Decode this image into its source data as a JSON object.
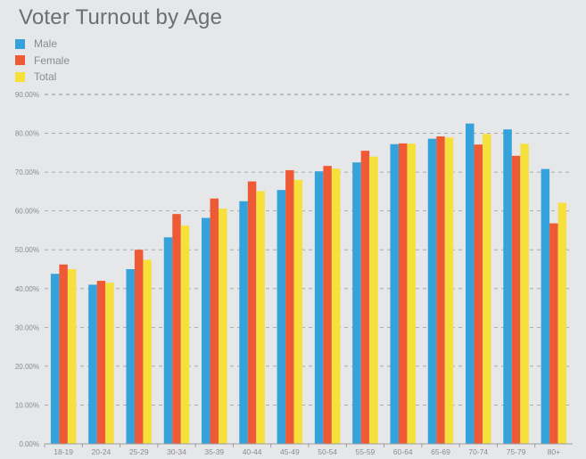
{
  "chart_data": {
    "type": "bar",
    "title": "Voter Turnout by Age",
    "xlabel": "",
    "ylabel": "",
    "ylim": [
      0,
      90
    ],
    "yticks": [
      {
        "value": 0,
        "label": "0.00%"
      },
      {
        "value": 10,
        "label": "10.00%"
      },
      {
        "value": 20,
        "label": "20.00%"
      },
      {
        "value": 30,
        "label": "30.00%"
      },
      {
        "value": 40,
        "label": "40.00%"
      },
      {
        "value": 50,
        "label": "50.00%"
      },
      {
        "value": 60,
        "label": "60.00%"
      },
      {
        "value": 70,
        "label": "70.00%"
      },
      {
        "value": 80,
        "label": "80.00%"
      },
      {
        "value": 90,
        "label": "90.00%"
      }
    ],
    "grid": true,
    "legend_position": "top-left",
    "categories": [
      "18-19",
      "20-24",
      "25-29",
      "30-34",
      "35-39",
      "40-44",
      "45-49",
      "50-54",
      "55-59",
      "60-64",
      "65-69",
      "70-74",
      "75-79",
      "80+"
    ],
    "series": [
      {
        "name": "Male",
        "color": "#36a2dc",
        "values": [
          43.8,
          41.0,
          45.0,
          53.2,
          58.2,
          62.5,
          65.4,
          70.2,
          72.5,
          77.2,
          78.6,
          82.5,
          81.0,
          70.8
        ]
      },
      {
        "name": "Female",
        "color": "#ef5a36",
        "values": [
          46.2,
          42.0,
          50.0,
          59.2,
          63.2,
          67.6,
          70.5,
          71.6,
          75.5,
          77.4,
          79.2,
          77.1,
          74.2,
          56.8
        ]
      },
      {
        "name": "Total",
        "color": "#f5e03c",
        "values": [
          45.0,
          41.5,
          47.4,
          56.2,
          60.6,
          65.1,
          68.0,
          70.9,
          74.0,
          77.3,
          78.9,
          79.8,
          77.3,
          62.1
        ]
      }
    ]
  }
}
